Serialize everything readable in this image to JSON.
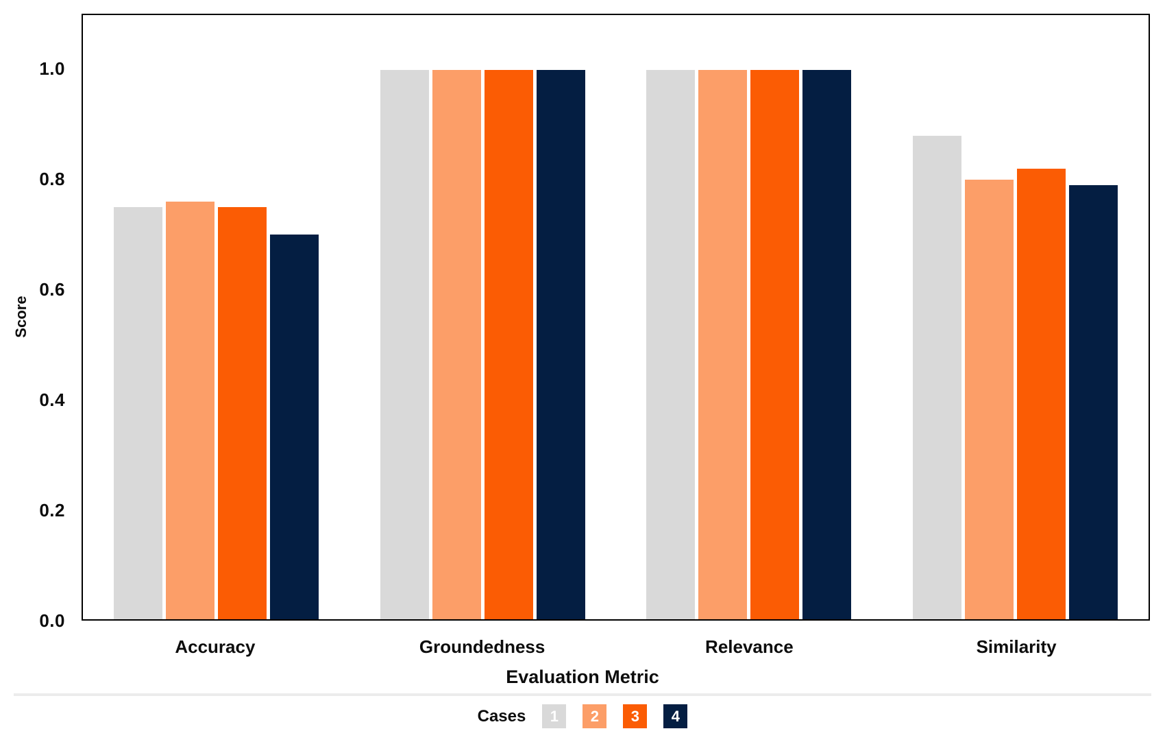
{
  "chart_data": {
    "type": "bar",
    "title": "",
    "categories": [
      "Accuracy",
      "Groundedness",
      "Relevance",
      "Similarity"
    ],
    "series": [
      {
        "name": "1",
        "color": "#d9d9d9",
        "values": [
          0.75,
          1.0,
          1.0,
          0.88
        ]
      },
      {
        "name": "2",
        "color": "#fc9e68",
        "values": [
          0.76,
          1.0,
          1.0,
          0.8
        ]
      },
      {
        "name": "3",
        "color": "#fb5c04",
        "values": [
          0.75,
          1.0,
          1.0,
          0.82
        ]
      },
      {
        "name": "4",
        "color": "#041e42",
        "values": [
          0.7,
          1.0,
          1.0,
          0.79
        ]
      }
    ],
    "xlabel": "Evaluation Metric",
    "ylabel": "Score",
    "ylim": [
      0,
      1.1
    ],
    "yticks": [
      "0.0",
      "0.2",
      "0.4",
      "0.6",
      "0.8",
      "1.0"
    ],
    "grid": false,
    "legend": {
      "label": "Cases",
      "position": "bottom",
      "entries": [
        "1",
        "2",
        "3",
        "4"
      ]
    }
  }
}
